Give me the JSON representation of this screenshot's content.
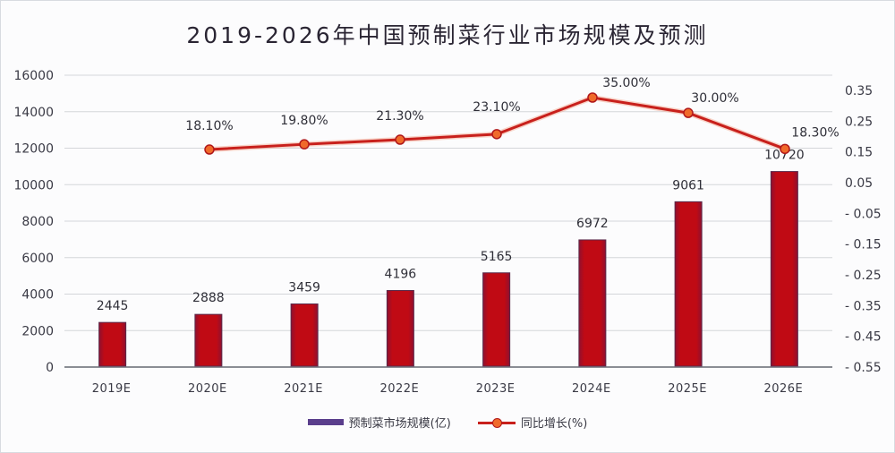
{
  "title": "2019-2026年中国预制菜行业市场规模及预测",
  "legend": {
    "bar_label": "预制菜市场规模(亿)",
    "line_label": "同比增长(%)"
  },
  "colors": {
    "bar": "#c00a14",
    "bar_edge": "#5a2a4a",
    "line": "#c8201c",
    "marker": "#f06a2a",
    "legend_bar": "#5a3e8c",
    "grid": "#d4d6da"
  },
  "chart_data": {
    "type": "bar+line",
    "title": "2019-2026年中国预制菜行业市场规模及预测",
    "categories": [
      "2019E",
      "2020E",
      "2021E",
      "2022E",
      "2023E",
      "2024E",
      "2025E",
      "2026E"
    ],
    "series": [
      {
        "name": "预制菜市场规模(亿)",
        "type": "bar",
        "axis": "left",
        "values": [
          2445,
          2888,
          3459,
          4196,
          5165,
          6972,
          9061,
          10720
        ],
        "labels": [
          "2445",
          "2888",
          "3459",
          "4196",
          "5165",
          "6972",
          "9061",
          "10720"
        ]
      },
      {
        "name": "同比增长(%)",
        "type": "line",
        "axis": "right",
        "values": [
          null,
          0.181,
          0.198,
          0.213,
          0.231,
          0.35,
          0.3,
          0.183
        ],
        "labels": [
          "",
          "18.10%",
          "19.80%",
          "21.30%",
          "23.10%",
          "35.00%",
          "30.00%",
          "18.30%"
        ]
      }
    ],
    "y_left": {
      "ticks": [
        "0",
        "2000",
        "4000",
        "6000",
        "8000",
        "10000",
        "12000",
        "14000",
        "16000"
      ],
      "range": [
        0,
        16000
      ]
    },
    "y_right": {
      "ticks": [
        "0.35",
        "0.25",
        "0.15",
        "0.05",
        "-0.05",
        "-0.15",
        "-0.25",
        "-0.35",
        "-0.45",
        "-0.55"
      ],
      "range": [
        -0.55,
        0.35
      ]
    },
    "xlabel": "",
    "ylabel": "",
    "grid": true,
    "legend_position": "bottom"
  }
}
